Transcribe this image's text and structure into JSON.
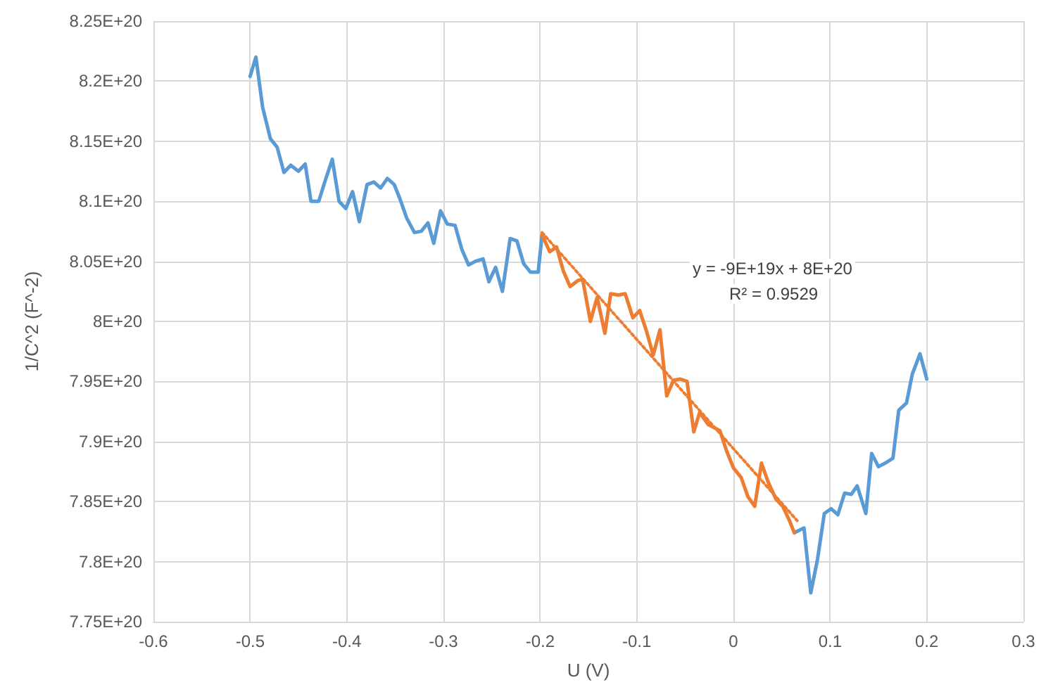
{
  "chart_data": {
    "type": "line",
    "xlabel": "U (V)",
    "ylabel": "1/C^2 (F^-2)",
    "xlim": [
      -0.6,
      0.3
    ],
    "xticks": [
      -0.6,
      -0.5,
      -0.4,
      -0.3,
      -0.2,
      -0.1,
      0,
      0.1,
      0.2,
      0.3
    ],
    "ylim": [
      7.75e+20,
      8.25e+20
    ],
    "yticks": [
      {
        "value": 7.75e+20,
        "label": "7.75E+20"
      },
      {
        "value": 7.8e+20,
        "label": "7.8E+20"
      },
      {
        "value": 7.85e+20,
        "label": "7.85E+20"
      },
      {
        "value": 7.9e+20,
        "label": "7.9E+20"
      },
      {
        "value": 7.95e+20,
        "label": "7.95E+20"
      },
      {
        "value": 8e+20,
        "label": "8E+20"
      },
      {
        "value": 8.05e+20,
        "label": "8.05E+20"
      },
      {
        "value": 8.1e+20,
        "label": "8.1E+20"
      },
      {
        "value": 8.15e+20,
        "label": "8.15E+20"
      },
      {
        "value": 8.2e+20,
        "label": "8.2E+20"
      },
      {
        "value": 8.25e+20,
        "label": "8.25E+20"
      }
    ],
    "grid": true,
    "marker": "none",
    "line_style": "solid",
    "annotations": [
      "y = -9E+19x + 8E+20",
      "R² = 0.9529"
    ],
    "series": [
      {
        "color": "#5b9bd5",
        "x": [
          -0.5,
          -0.494,
          -0.487,
          -0.479,
          -0.472,
          -0.465,
          -0.458,
          -0.45,
          -0.443,
          -0.437,
          -0.429,
          -0.422,
          -0.415,
          -0.408,
          -0.401,
          -0.394,
          -0.387,
          -0.379,
          -0.372,
          -0.365,
          -0.358,
          -0.351,
          -0.345,
          -0.338,
          -0.33,
          -0.323,
          -0.316,
          -0.31,
          -0.303,
          -0.296,
          -0.288,
          -0.281,
          -0.274,
          -0.267,
          -0.259,
          -0.253,
          -0.246,
          -0.239,
          -0.231,
          -0.224,
          -0.217,
          -0.21,
          -0.202,
          -0.198,
          -0.1,
          0.063,
          0.073,
          0.08,
          0.087,
          0.094,
          0.101,
          0.108,
          0.115,
          0.122,
          0.128,
          0.137,
          0.143,
          0.15,
          0.157,
          0.165,
          0.171,
          0.179,
          0.185,
          0.193,
          0.2
        ],
        "values": [
          8.204e+20,
          8.22e+20,
          8.178e+20,
          8.152e+20,
          8.145e+20,
          8.124e+20,
          8.13e+20,
          8.125e+20,
          8.131e+20,
          8.1e+20,
          8.1e+20,
          8.118e+20,
          8.135e+20,
          8.1e+20,
          8.094e+20,
          8.108e+20,
          8.083e+20,
          8.114e+20,
          8.116e+20,
          8.111e+20,
          8.119e+20,
          8.114e+20,
          8.102e+20,
          8.086e+20,
          8.074e+20,
          8.075e+20,
          8.082e+20,
          8.065e+20,
          8.092e+20,
          8.081e+20,
          8.08e+20,
          8.06e+20,
          8.047e+20,
          8.05e+20,
          8.052e+20,
          8.033e+20,
          8.045e+20,
          8.025e+20,
          8.069e+20,
          8.067e+20,
          8.048e+20,
          8.041e+20,
          8.041e+20,
          8.072e+20,
          null,
          7.824e+20,
          7.828e+20,
          7.774e+20,
          7.802e+20,
          7.84e+20,
          7.844e+20,
          7.839e+20,
          7.857e+20,
          7.856e+20,
          7.863e+20,
          7.84e+20,
          7.89e+20,
          7.879e+20,
          7.882e+20,
          7.886e+20,
          7.926e+20,
          7.932e+20,
          7.956e+20,
          7.973e+20,
          7.952e+20
        ]
      },
      {
        "color": "#ed7d31",
        "x": [
          -0.198,
          -0.19,
          -0.183,
          -0.176,
          -0.169,
          -0.161,
          -0.156,
          -0.148,
          -0.141,
          -0.133,
          -0.127,
          -0.119,
          -0.112,
          -0.104,
          -0.097,
          -0.09,
          -0.083,
          -0.076,
          -0.069,
          -0.062,
          -0.055,
          -0.048,
          -0.041,
          -0.035,
          -0.026,
          -0.014,
          -0.007,
          0,
          0.008,
          0.015,
          0.022,
          0.029,
          0.036,
          0.044,
          0.051,
          0.058,
          0.063
        ],
        "values": [
          8.072e+20,
          8.058e+20,
          8.062e+20,
          8.042e+20,
          8.029e+20,
          8.034e+20,
          8.035e+20,
          8e+20,
          8.02e+20,
          7.99e+20,
          8.023e+20,
          8.022e+20,
          8.023e+20,
          8.003e+20,
          8.009e+20,
          7.992e+20,
          7.972e+20,
          7.993e+20,
          7.938e+20,
          7.951e+20,
          7.952e+20,
          7.95e+20,
          7.908e+20,
          7.924e+20,
          7.914e+20,
          7.909e+20,
          7.892e+20,
          7.878e+20,
          7.87e+20,
          7.854e+20,
          7.846e+20,
          7.882e+20,
          7.866e+20,
          7.852e+20,
          7.846e+20,
          7.834e+20,
          7.824e+20
        ]
      },
      {
        "type": "line",
        "color": "#ed7d31",
        "line_style": "dotted",
        "x": [
          -0.198,
          0.066
        ],
        "values": [
          8.074e+20,
          7.834e+20
        ]
      }
    ]
  }
}
